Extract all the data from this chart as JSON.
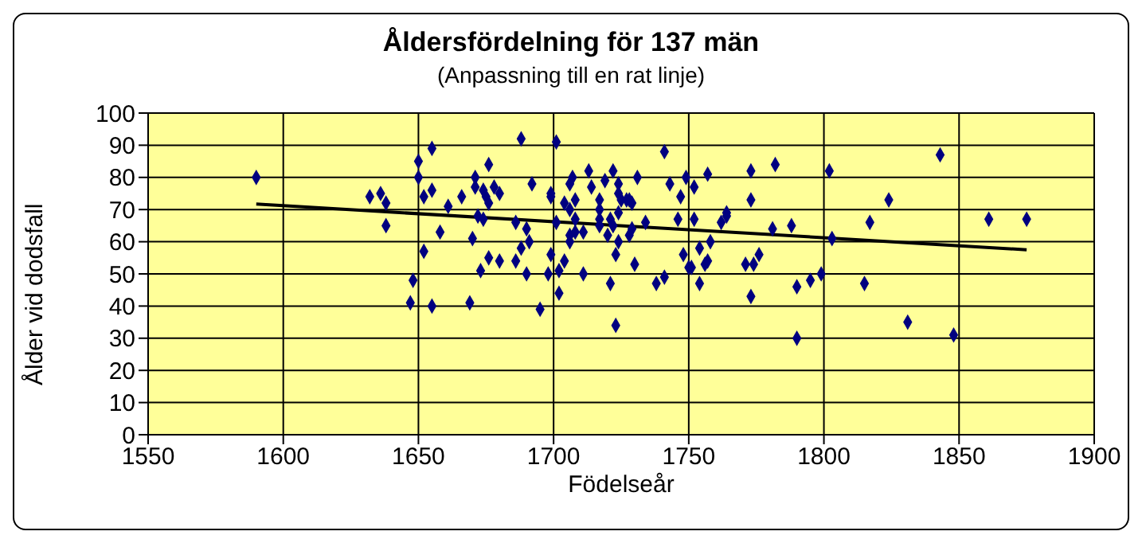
{
  "chart_data": {
    "type": "scatter",
    "title": "Åldersfördelning för 137 män",
    "subtitle": "(Anpassning till en rat linje)",
    "xlabel": "Födelseår",
    "ylabel": "Ålder vid dodsfall",
    "xlim": [
      1550,
      1900
    ],
    "xticks": [
      1550,
      1600,
      1650,
      1700,
      1750,
      1800,
      1850,
      1900
    ],
    "ylim": [
      0,
      100
    ],
    "yticks": [
      0,
      10,
      20,
      30,
      40,
      50,
      60,
      70,
      80,
      90,
      100
    ],
    "grid": true,
    "marker": "diamond",
    "series": [
      {
        "color": "#000080",
        "x": [
          1590,
          1632,
          1636,
          1638,
          1638,
          1650,
          1650,
          1655,
          1652,
          1655,
          1652,
          1648,
          1647,
          1655,
          1658,
          1661,
          1666,
          1669,
          1670,
          1671,
          1671,
          1672,
          1674,
          1673,
          1674,
          1675,
          1676,
          1676,
          1676,
          1678,
          1680,
          1680,
          1686,
          1686,
          1688,
          1688,
          1690,
          1691,
          1690,
          1692,
          1695,
          1698,
          1699,
          1699,
          1699,
          1701,
          1702,
          1702,
          1701,
          1704,
          1704,
          1706,
          1707,
          1706,
          1706,
          1706,
          1708,
          1708,
          1708,
          1711,
          1711,
          1713,
          1714,
          1717,
          1717,
          1717,
          1717,
          1719,
          1720,
          1721,
          1721,
          1722,
          1722,
          1724,
          1723,
          1723,
          1724,
          1724,
          1724,
          1725,
          1727,
          1728,
          1729,
          1729,
          1728,
          1730,
          1731,
          1734,
          1738,
          1741,
          1741,
          1743,
          1746,
          1747,
          1748,
          1749,
          1750,
          1751,
          1752,
          1752,
          1754,
          1754,
          1756,
          1757,
          1757,
          1758,
          1762,
          1764,
          1764,
          1771,
          1773,
          1773,
          1773,
          1774,
          1776,
          1781,
          1782,
          1788,
          1790,
          1790,
          1795,
          1799,
          1802,
          1803,
          1815,
          1817,
          1824,
          1831,
          1843,
          1848,
          1861,
          1875
        ],
        "values": [
          80,
          74,
          75,
          72,
          65,
          85,
          80,
          89,
          74,
          76,
          57,
          48,
          41,
          40,
          63,
          71,
          74,
          41,
          61,
          80,
          77,
          68,
          67,
          51,
          76,
          74,
          84,
          72,
          55,
          77,
          75,
          54,
          66,
          54,
          92,
          58,
          64,
          60,
          50,
          78,
          39,
          50,
          75,
          74,
          56,
          91,
          51,
          44,
          66,
          54,
          72,
          78,
          80,
          62,
          60,
          70,
          73,
          67,
          63,
          50,
          63,
          82,
          77,
          67,
          73,
          70,
          65,
          79,
          62,
          67,
          47,
          82,
          65,
          60,
          56,
          34,
          78,
          75,
          69,
          73,
          73,
          73,
          72,
          64,
          62,
          53,
          80,
          66,
          47,
          49,
          88,
          78,
          67,
          74,
          56,
          80,
          52,
          52,
          77,
          67,
          58,
          47,
          53,
          81,
          54,
          60,
          66,
          68,
          69,
          53,
          82,
          73,
          43,
          53,
          56,
          64,
          84,
          65,
          46,
          30,
          48,
          50,
          82,
          61,
          47,
          66,
          73,
          35,
          87,
          31,
          67,
          67
        ]
      },
      {
        "type": "line",
        "color": "#000000",
        "marker": "none",
        "x": [
          1590,
          1875
        ],
        "values": [
          71.7,
          57.5
        ]
      }
    ]
  }
}
